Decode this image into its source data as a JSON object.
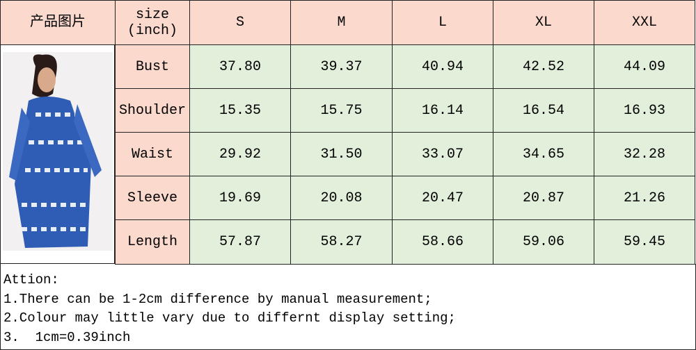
{
  "table": {
    "header": [
      "产品图片",
      "size\n(inch)",
      "S",
      "M",
      "L",
      "XL",
      "XXL"
    ],
    "rows": [
      {
        "label": "Bust",
        "values": [
          "37.80",
          "39.37",
          "40.94",
          "42.52",
          "44.09"
        ]
      },
      {
        "label": "Shoulder",
        "values": [
          "15.35",
          "15.75",
          "16.14",
          "16.54",
          "16.93"
        ]
      },
      {
        "label": "Waist",
        "values": [
          "29.92",
          "31.50",
          "33.07",
          "34.65",
          "32.28"
        ]
      },
      {
        "label": "Sleeve",
        "values": [
          "19.69",
          "20.08",
          "20.47",
          "20.87",
          "21.26"
        ]
      },
      {
        "label": "Length",
        "values": [
          "57.87",
          "58.27",
          "58.66",
          "59.06",
          "59.45"
        ]
      }
    ]
  },
  "notes": {
    "title": "Attion:",
    "lines": [
      "1.There can be 1-2cm difference by manual measurement;",
      "2.Colour may little vary due to differnt display setting;",
      "3.  1cm=0.39inch"
    ]
  }
}
